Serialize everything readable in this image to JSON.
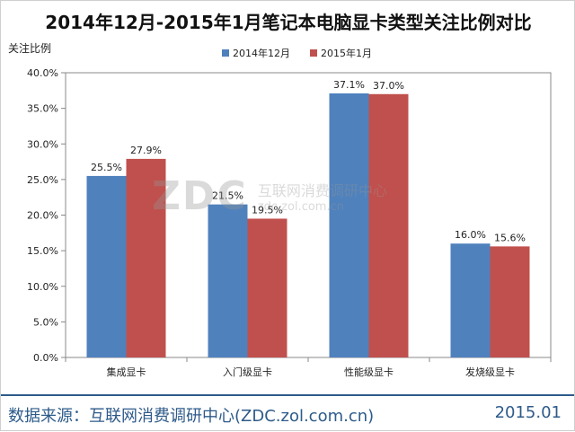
{
  "chart_data": {
    "type": "bar",
    "title": "2014年12月-2015年1月笔记本电脑显卡类型关注比例对比",
    "ylabel": "关注比例",
    "xlabel": "",
    "categories": [
      "集成显卡",
      "入门级显卡",
      "性能级显卡",
      "发烧级显卡"
    ],
    "series": [
      {
        "name": "2014年12月",
        "values": [
          25.5,
          21.5,
          37.1,
          16.0
        ],
        "color": "#4f81bd"
      },
      {
        "name": "2015年1月",
        "values": [
          27.9,
          19.5,
          37.0,
          15.6
        ],
        "color": "#c0504d"
      }
    ],
    "ylim": [
      0,
      40
    ],
    "yticks": [
      "0.0%",
      "5.0%",
      "10.0%",
      "15.0%",
      "20.0%",
      "25.0%",
      "30.0%",
      "35.0%",
      "40.0%"
    ],
    "data_labels": [
      [
        "25.5%",
        "21.5%",
        "37.1%",
        "16.0%"
      ],
      [
        "27.9%",
        "19.5%",
        "37.0%",
        "15.6%"
      ]
    ],
    "legend_position": "top",
    "grid": false
  },
  "watermark": {
    "logo": "ZDC",
    "name": "互联网消费调研中心",
    "url": "zdc.zol.com.cn"
  },
  "footer": {
    "source": "数据来源：互联网消费调研中心(ZDC.zol.com.cn)",
    "date": "2015.01"
  }
}
